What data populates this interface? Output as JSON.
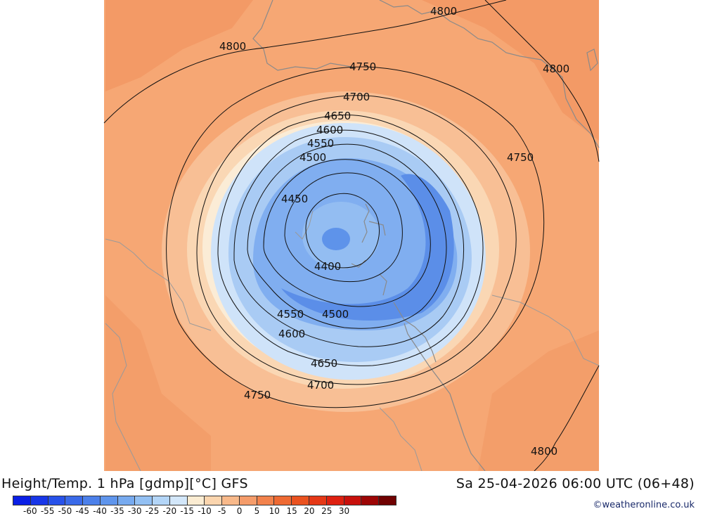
{
  "title": "Height/Temp. 1 hPa [gdmp][°C] GFS",
  "datetime": "Sa 25-04-2026 06:00 UTC (06+48)",
  "credit": "©weatheronline.co.uk",
  "legend": {
    "colors": [
      "#0a1fe6",
      "#1836e8",
      "#2752ea",
      "#3a6ae9",
      "#4c80ea",
      "#5f95ec",
      "#77aaef",
      "#93c0f3",
      "#b3d5f7",
      "#d3e7fa",
      "#fbecd2",
      "#fbd5ae",
      "#f8b98a",
      "#f59c6a",
      "#f2824c",
      "#ee6a33",
      "#ea521f",
      "#e53816",
      "#de2010",
      "#c8100c",
      "#9d0606",
      "#700202"
    ],
    "tick_labels": [
      "-60",
      "-55",
      "-50",
      "-45",
      "-40",
      "-35",
      "-30",
      "-25",
      "-20",
      "-15",
      "-10",
      "-5",
      "0",
      "5",
      "10",
      "15",
      "20",
      "25",
      "30"
    ]
  },
  "contour_labels": [
    {
      "value": "4800"
    },
    {
      "value": "4800"
    },
    {
      "value": "4800"
    },
    {
      "value": "4800"
    },
    {
      "value": "4750"
    },
    {
      "value": "4750"
    },
    {
      "value": "4750"
    },
    {
      "value": "4700"
    },
    {
      "value": "4700"
    },
    {
      "value": "4650"
    },
    {
      "value": "4650"
    },
    {
      "value": "4600"
    },
    {
      "value": "4600"
    },
    {
      "value": "4550"
    },
    {
      "value": "4550"
    },
    {
      "value": "4500"
    },
    {
      "value": "4500"
    },
    {
      "value": "4450"
    },
    {
      "value": "4400"
    }
  ]
}
